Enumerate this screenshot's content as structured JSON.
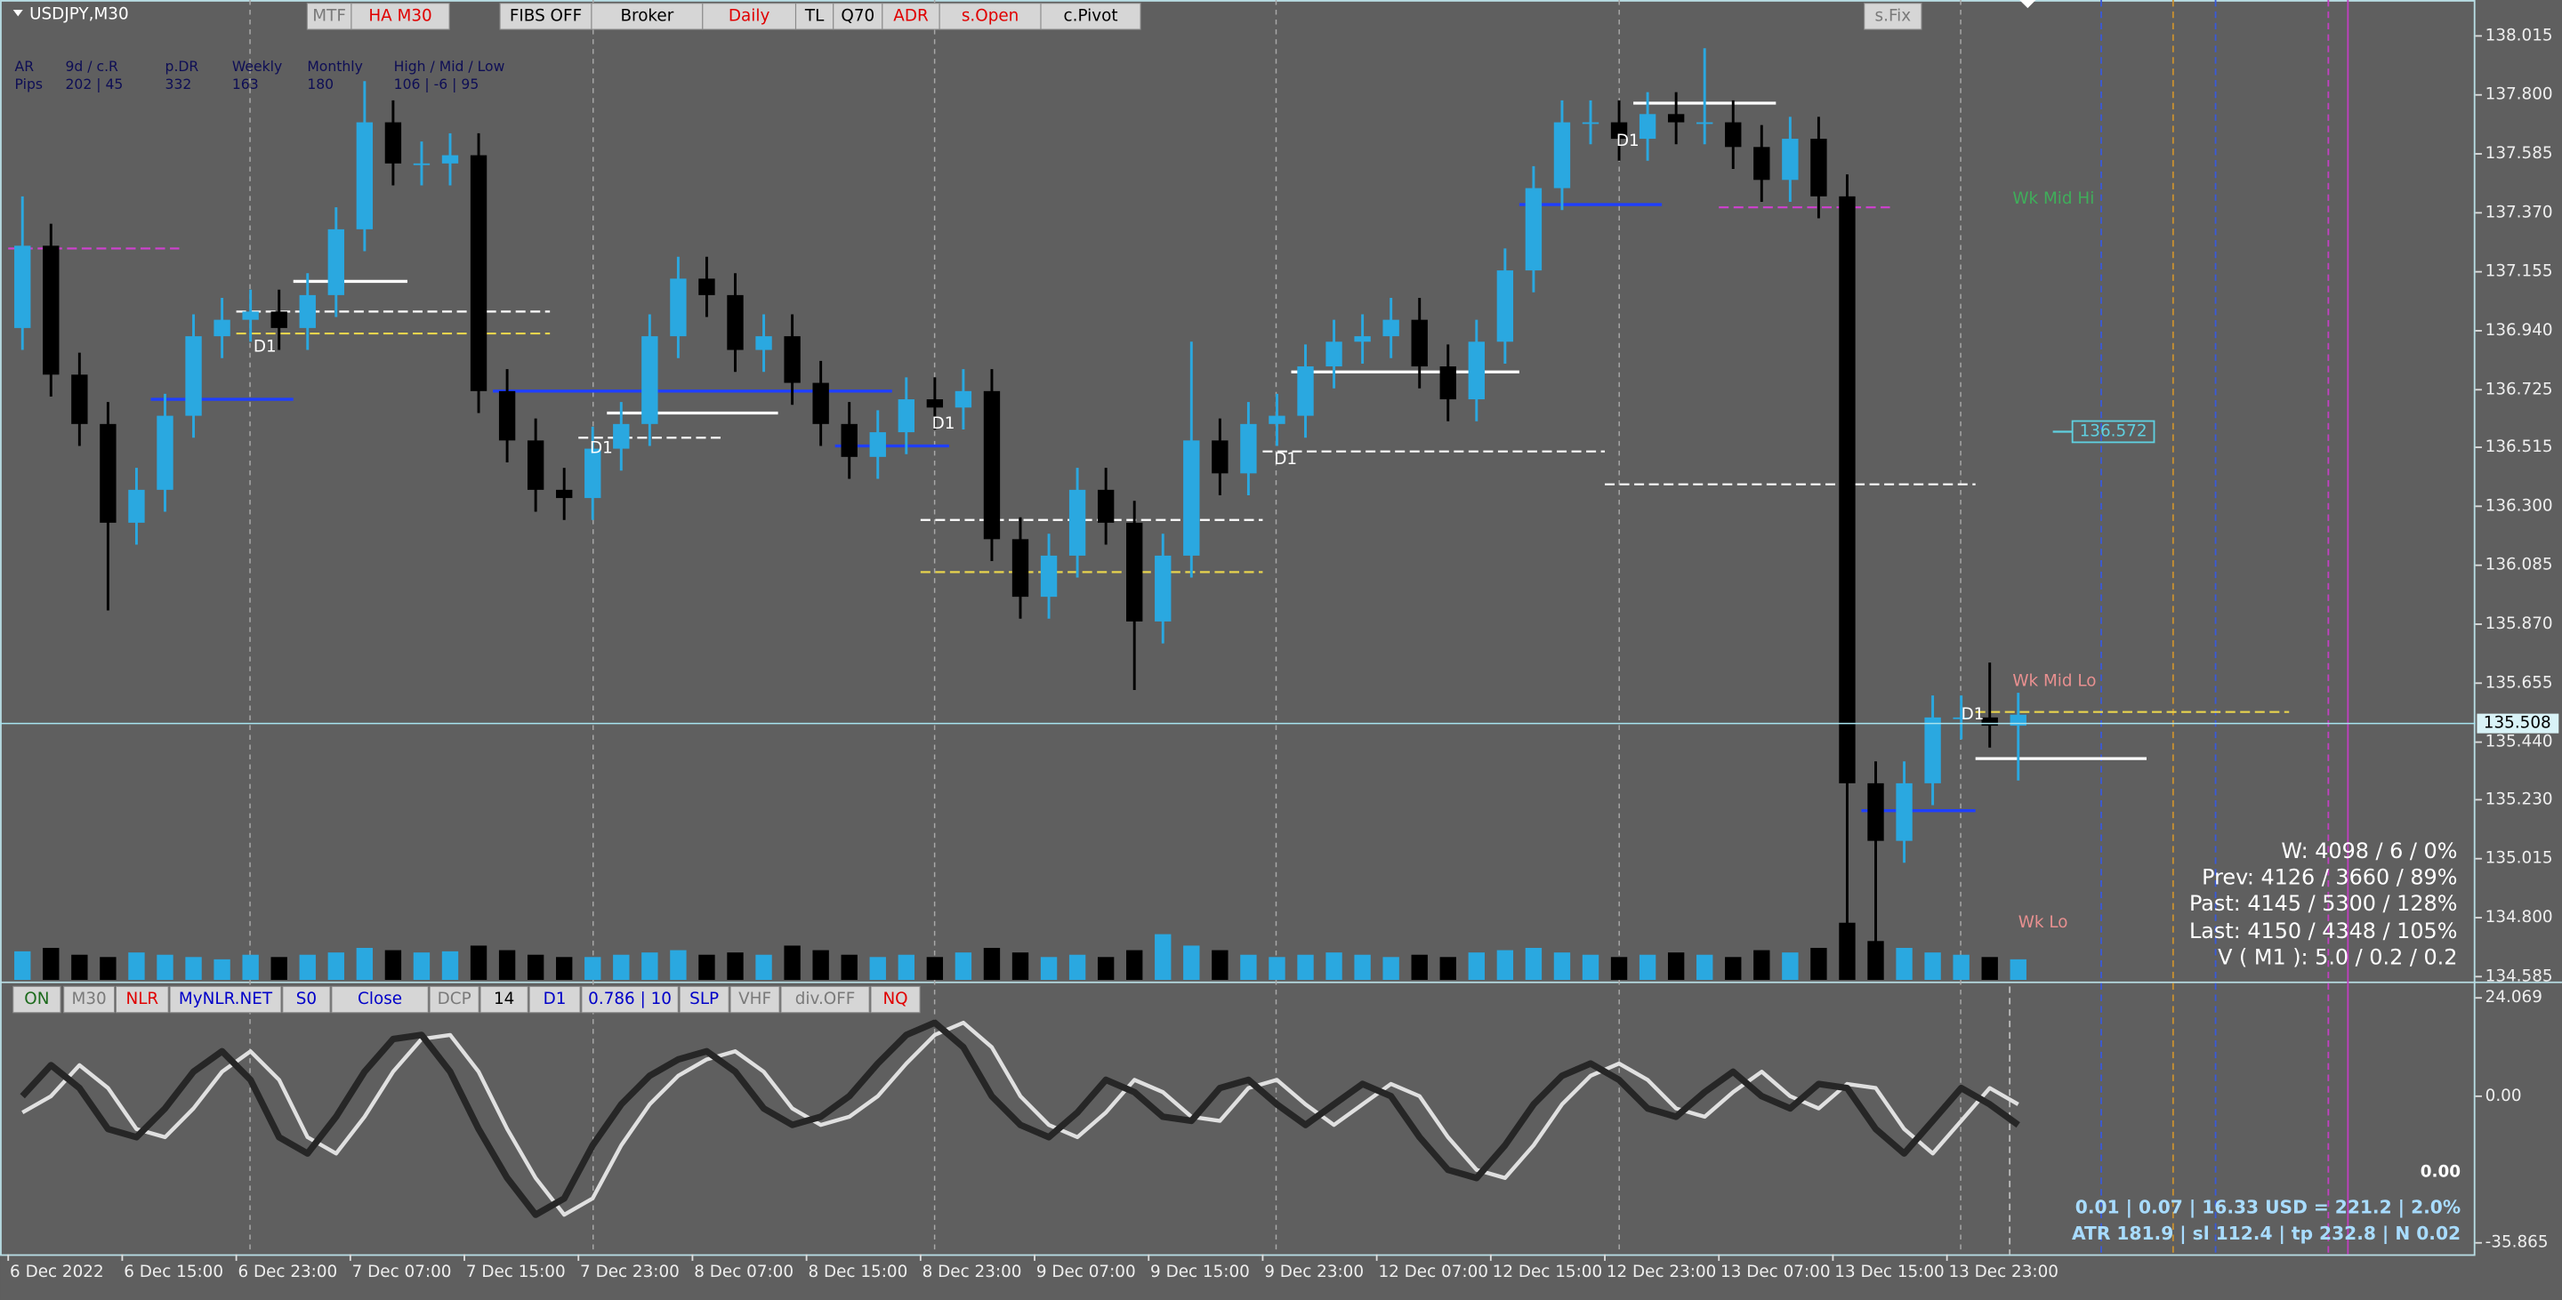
{
  "window": {
    "title": "USDJPY,M30"
  },
  "toolbar": [
    "MTF",
    "HA M30",
    "FIBS OFF",
    "Broker",
    "Daily",
    "TL",
    "Q70",
    "ADR",
    "s.Open",
    "c.Pivot"
  ],
  "fix_button": "s.Fix",
  "info": {
    "header": [
      "AR",
      "9d / c.R",
      "p.DR",
      "Weekly",
      "Monthly",
      "High / Mid / Low"
    ],
    "row": [
      "Pips",
      "202 | 45",
      "332",
      "163",
      "180",
      "106 | -6 | 95"
    ]
  },
  "stats": [
    "W: 4098 / 6 / 0%",
    "Prev: 4126 / 3660 / 89%",
    "Past: 4145 / 5300 / 128%",
    "Last: 4150 / 4348 / 105%",
    "V ( M1 ): 5.0 / 0.2 / 0.2"
  ],
  "lower_toolbar": [
    "ON",
    "M30",
    "NLR",
    "MyNLR.NET",
    "S0",
    "Close",
    "DCP",
    "14",
    "D1",
    "0.786 | 10",
    "SLP",
    "VHF",
    "div.OFF",
    "NQ"
  ],
  "risk": {
    "value": "0.00",
    "line1": "0.01 | 0.07 | 16.33 USD = 221.2 | 2.0%",
    "line2": "ATR 181.9 | sl 112.4 | tp 232.8 | N 0.02"
  },
  "chart_data": [
    {
      "type": "candlestick",
      "categories": [
        "6 Dec 2022",
        null,
        null,
        null,
        "6 Dec 15:00",
        null,
        null,
        null,
        "6 Dec 23:00",
        null,
        null,
        null,
        "7 Dec 07:00",
        null,
        null,
        null,
        "7 Dec 15:00",
        null,
        null,
        null,
        "7 Dec 23:00",
        null,
        null,
        null,
        "8 Dec 07:00",
        null,
        null,
        null,
        "8 Dec 15:00",
        null,
        null,
        null,
        "8 Dec 23:00",
        null,
        null,
        null,
        "9 Dec 07:00",
        null,
        null,
        null,
        "9 Dec 15:00",
        null,
        null,
        null,
        "9 Dec 23:00",
        null,
        null,
        null,
        "12 Dec 07:00",
        null,
        null,
        null,
        "12 Dec 15:00",
        null,
        null,
        null,
        "12 Dec 23:00",
        null,
        null,
        null,
        "13 Dec 07:00",
        null,
        null,
        null,
        "13 Dec 15:00",
        null,
        null,
        null,
        "13 Dec 23:00",
        null,
        null
      ],
      "open": [
        136.95,
        137.25,
        136.78,
        136.6,
        136.24,
        136.36,
        136.63,
        136.92,
        136.98,
        137.01,
        136.95,
        137.07,
        137.31,
        137.7,
        137.55,
        137.55,
        137.58,
        136.72,
        136.54,
        136.36,
        136.33,
        136.51,
        136.6,
        136.92,
        137.13,
        137.07,
        136.87,
        136.92,
        136.75,
        136.6,
        136.48,
        136.57,
        136.69,
        136.66,
        136.72,
        136.18,
        135.97,
        136.12,
        136.36,
        136.24,
        135.88,
        136.12,
        136.54,
        136.42,
        136.6,
        136.63,
        136.81,
        136.9,
        136.92,
        136.98,
        136.81,
        136.69,
        136.9,
        137.16,
        137.46,
        137.7,
        137.7,
        137.64,
        137.73,
        137.7,
        137.7,
        137.61,
        137.49,
        137.64,
        137.43,
        135.29,
        135.08,
        135.29,
        135.53,
        135.53,
        135.5
      ],
      "high": [
        137.43,
        137.33,
        136.86,
        136.68,
        136.44,
        136.71,
        137.0,
        137.06,
        137.09,
        137.09,
        137.15,
        137.39,
        137.85,
        137.78,
        137.63,
        137.66,
        137.66,
        136.8,
        136.62,
        136.44,
        136.59,
        136.68,
        137.0,
        137.21,
        137.21,
        137.15,
        137.0,
        137.0,
        136.83,
        136.68,
        136.65,
        136.77,
        136.77,
        136.8,
        136.8,
        136.26,
        136.2,
        136.44,
        136.44,
        136.32,
        136.2,
        136.9,
        136.62,
        136.68,
        136.71,
        136.89,
        136.98,
        137.0,
        137.06,
        137.06,
        136.89,
        136.98,
        137.24,
        137.54,
        137.78,
        137.78,
        137.78,
        137.81,
        137.81,
        137.97,
        137.78,
        137.69,
        137.72,
        137.72,
        137.51,
        135.37,
        135.37,
        135.61,
        135.61,
        135.73,
        135.62
      ],
      "low": [
        136.87,
        136.7,
        136.52,
        135.92,
        136.16,
        136.28,
        136.55,
        136.84,
        136.9,
        136.87,
        136.87,
        136.99,
        137.23,
        137.47,
        137.47,
        137.47,
        136.64,
        136.46,
        136.28,
        136.25,
        136.25,
        136.43,
        136.52,
        136.84,
        136.99,
        136.79,
        136.79,
        136.67,
        136.52,
        136.4,
        136.4,
        136.49,
        136.58,
        136.58,
        136.1,
        135.89,
        135.89,
        136.04,
        136.16,
        135.63,
        135.8,
        136.04,
        136.34,
        136.34,
        136.52,
        136.55,
        136.73,
        136.82,
        136.84,
        136.73,
        136.61,
        136.61,
        136.82,
        137.08,
        137.38,
        137.62,
        137.56,
        137.56,
        137.62,
        137.62,
        137.53,
        137.41,
        137.41,
        137.35,
        134.65,
        134.6,
        135.0,
        135.21,
        135.45,
        135.42,
        135.3
      ],
      "close": [
        137.25,
        136.78,
        136.6,
        136.24,
        136.36,
        136.63,
        136.92,
        136.98,
        137.01,
        136.95,
        137.07,
        137.31,
        137.7,
        137.55,
        137.55,
        137.58,
        136.72,
        136.54,
        136.36,
        136.33,
        136.51,
        136.6,
        136.92,
        137.13,
        137.07,
        136.87,
        136.92,
        136.75,
        136.6,
        136.48,
        136.57,
        136.69,
        136.66,
        136.72,
        136.18,
        135.97,
        136.12,
        136.36,
        136.24,
        135.88,
        136.12,
        136.54,
        136.42,
        136.6,
        136.63,
        136.81,
        136.9,
        136.92,
        136.98,
        136.81,
        136.69,
        136.9,
        137.16,
        137.46,
        137.7,
        137.7,
        137.64,
        137.73,
        137.7,
        137.7,
        137.61,
        137.49,
        137.64,
        137.43,
        135.29,
        135.08,
        135.29,
        135.53,
        135.53,
        135.5,
        135.54
      ],
      "volumes": [
        25,
        28,
        22,
        20,
        24,
        22,
        20,
        18,
        22,
        20,
        22,
        24,
        28,
        26,
        24,
        25,
        30,
        26,
        22,
        20,
        20,
        22,
        24,
        26,
        22,
        24,
        22,
        30,
        26,
        22,
        20,
        22,
        20,
        24,
        28,
        24,
        20,
        22,
        20,
        26,
        40,
        30,
        26,
        22,
        20,
        22,
        24,
        22,
        20,
        22,
        20,
        24,
        26,
        28,
        24,
        22,
        20,
        22,
        24,
        22,
        20,
        26,
        24,
        28,
        50,
        34,
        28,
        24,
        22,
        20,
        18
      ],
      "volume_lim": [
        0,
        100
      ],
      "up_color": "#2aa8e0",
      "down_color": "#000000",
      "ylim": [
        134.573,
        138.146
      ],
      "yticks": [
        138.015,
        {
          "value": 137.8,
          "label": "137.800"
        },
        137.585,
        {
          "value": 137.37,
          "label": "137.370"
        },
        137.155,
        {
          "value": 136.94,
          "label": "136.940"
        },
        136.725,
        136.515,
        {
          "value": 136.3,
          "label": "136.300"
        },
        136.085,
        {
          "value": 135.87,
          "label": "135.870"
        },
        135.655,
        {
          "value": 135.44,
          "label": "135.440"
        },
        {
          "value": 135.23,
          "label": "135.230"
        },
        135.015,
        {
          "value": 134.8,
          "label": "134.800"
        },
        134.585
      ],
      "grid": false,
      "current_price": 135.508,
      "marker": {
        "x": 72.4,
        "price": 136.572
      },
      "levels": [
        {
          "price": 137.24,
          "x": [
            0,
            6
          ],
          "color": "#d040d0",
          "style": "dashed"
        },
        {
          "price": 137.12,
          "x": [
            10,
            14
          ],
          "color": "#ffffff",
          "style": "solid"
        },
        {
          "price": 137.01,
          "x": [
            8,
            19
          ],
          "color": "#ffffff",
          "style": "dashed"
        },
        {
          "price": 136.93,
          "x": [
            8,
            19
          ],
          "color": "#e8d44d",
          "style": "dashed"
        },
        {
          "price": 136.69,
          "x": [
            5,
            10
          ],
          "color": "#1f3fff",
          "style": "solid"
        },
        {
          "price": 136.72,
          "x": [
            17,
            31
          ],
          "color": "#1f3fff",
          "style": "solid"
        },
        {
          "price": 136.64,
          "x": [
            21,
            27
          ],
          "color": "#ffffff",
          "style": "solid"
        },
        {
          "price": 136.55,
          "x": [
            20,
            25
          ],
          "color": "#ffffff",
          "style": "dashed"
        },
        {
          "price": 136.52,
          "x": [
            29,
            33
          ],
          "color": "#1f3fff",
          "style": "solid"
        },
        {
          "price": 136.25,
          "x": [
            32,
            44
          ],
          "color": "#ffffff",
          "style": "dashed"
        },
        {
          "price": 136.06,
          "x": [
            32,
            44
          ],
          "color": "#e8d44d",
          "style": "dashed"
        },
        {
          "price": 136.79,
          "x": [
            45,
            53
          ],
          "color": "#ffffff",
          "style": "solid"
        },
        {
          "price": 136.5,
          "x": [
            44,
            56
          ],
          "color": "#ffffff",
          "style": "dashed"
        },
        {
          "price": 137.4,
          "x": [
            53,
            58
          ],
          "color": "#1f3fff",
          "style": "solid"
        },
        {
          "price": 137.39,
          "x": [
            60,
            66
          ],
          "color": "#d040d0",
          "style": "dashed"
        },
        {
          "price": 137.77,
          "x": [
            57,
            62
          ],
          "color": "#ffffff",
          "style": "solid"
        },
        {
          "price": 136.38,
          "x": [
            56,
            69
          ],
          "color": "#ffffff",
          "style": "dashed"
        },
        {
          "price": 135.19,
          "x": [
            65,
            69
          ],
          "color": "#1f3fff",
          "style": "solid"
        },
        {
          "price": 135.38,
          "x": [
            69,
            75
          ],
          "color": "#ffffff",
          "style": "solid"
        },
        {
          "price": 135.55,
          "x": [
            69,
            80
          ],
          "color": "#e8d44d",
          "style": "dashed"
        }
      ],
      "annotations": [
        {
          "text": "D1",
          "x": 8.6,
          "y": 136.88,
          "color": "#ffffff"
        },
        {
          "text": "D1",
          "x": 20.4,
          "y": 136.51,
          "color": "#ffffff"
        },
        {
          "text": "D1",
          "x": 32.4,
          "y": 136.6,
          "color": "#ffffff"
        },
        {
          "text": "D1",
          "x": 44.4,
          "y": 136.47,
          "color": "#ffffff"
        },
        {
          "text": "D1",
          "x": 56.4,
          "y": 137.63,
          "color": "#ffffff"
        },
        {
          "text": "D1",
          "x": 68.5,
          "y": 135.54,
          "color": "#ffffff"
        },
        {
          "text": "Wk Mid Hi",
          "x": 70.3,
          "y": 137.42,
          "color": "#3fae5a"
        },
        {
          "text": "Wk Mid Lo",
          "x": 70.3,
          "y": 135.66,
          "color": "#e89090"
        },
        {
          "text": "Wk Lo",
          "x": 70.5,
          "y": 134.78,
          "color": "#e89090"
        }
      ]
    },
    {
      "type": "line",
      "series": [
        {
          "color": "#262626",
          "values": [
            0,
            7.6,
            2,
            -8,
            -10,
            -3,
            6,
            11,
            4,
            -10,
            -14,
            -5,
            6,
            14,
            15,
            6,
            -8,
            -20,
            -29,
            -25,
            -12,
            -2,
            5,
            9,
            11,
            6,
            -3,
            -7,
            -5,
            0,
            8,
            15,
            18,
            12,
            0,
            -7,
            -10,
            -4,
            4,
            1,
            -5,
            -6,
            2,
            4,
            -2,
            -7,
            -2,
            3,
            0,
            -10,
            -18,
            -20,
            -12,
            -2,
            5,
            8,
            4,
            -3,
            -5,
            1,
            6,
            0,
            -3,
            3,
            2,
            -8,
            -14,
            -6,
            2,
            -2,
            -7
          ]
        },
        {
          "color": "#e0e0e0",
          "values": [
            -4,
            0,
            7.6,
            2,
            -8,
            -10,
            -3,
            6,
            11,
            4,
            -10,
            -14,
            -5,
            6,
            14,
            15,
            6,
            -8,
            -20,
            -29,
            -25,
            -12,
            -2,
            5,
            9,
            11,
            6,
            -3,
            -7,
            -5,
            0,
            8,
            15,
            18,
            12,
            0,
            -7,
            -10,
            -4,
            4,
            1,
            -5,
            -6,
            2,
            4,
            -2,
            -7,
            -2,
            3,
            0,
            -10,
            -18,
            -20,
            -12,
            -2,
            5,
            8,
            4,
            -3,
            -5,
            1,
            6,
            0,
            -3,
            3,
            2,
            -8,
            -14,
            -6,
            2,
            -2
          ]
        }
      ],
      "ylim": [
        -35.865,
        24.069
      ],
      "yticks": [
        24.069,
        {
          "value": 0,
          "label": "0.00"
        },
        -35.865
      ]
    }
  ]
}
